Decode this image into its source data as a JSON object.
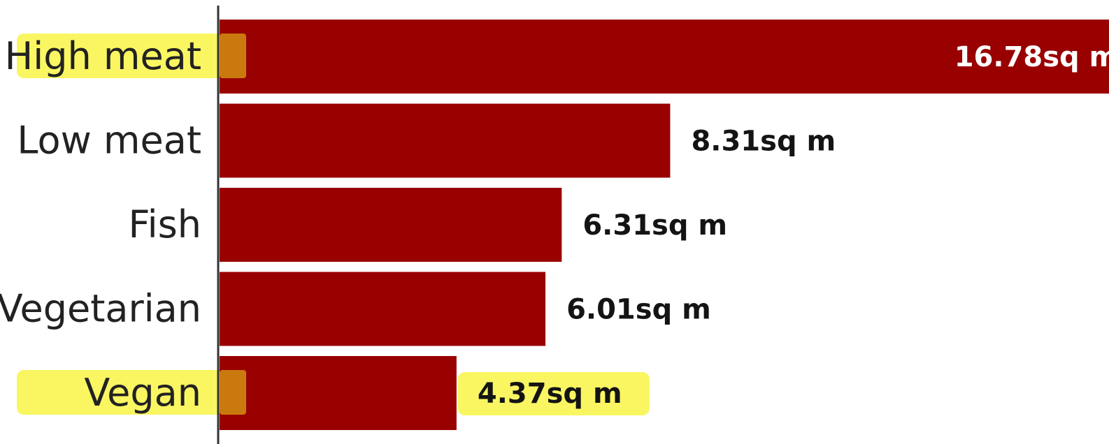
{
  "chart_data": {
    "type": "bar",
    "orientation": "horizontal",
    "categories": [
      "High meat",
      "Low meat",
      "Fish",
      "Vegetarian",
      "Vegan"
    ],
    "values": [
      16.78,
      8.31,
      6.31,
      6.01,
      4.37
    ],
    "value_labels": [
      "16.78sq m",
      "8.31sq m",
      "6.31sq m",
      "6.01sq m",
      "4.37sq m"
    ],
    "unit": "sq m",
    "title": "",
    "xlabel": "",
    "ylabel": "",
    "grid": false,
    "highlighted": [
      "High meat",
      "Vegan",
      "4.37sq m"
    ]
  },
  "colors": {
    "bar": "#990000",
    "highlighter": "#f6f226",
    "axis": "#333333"
  }
}
